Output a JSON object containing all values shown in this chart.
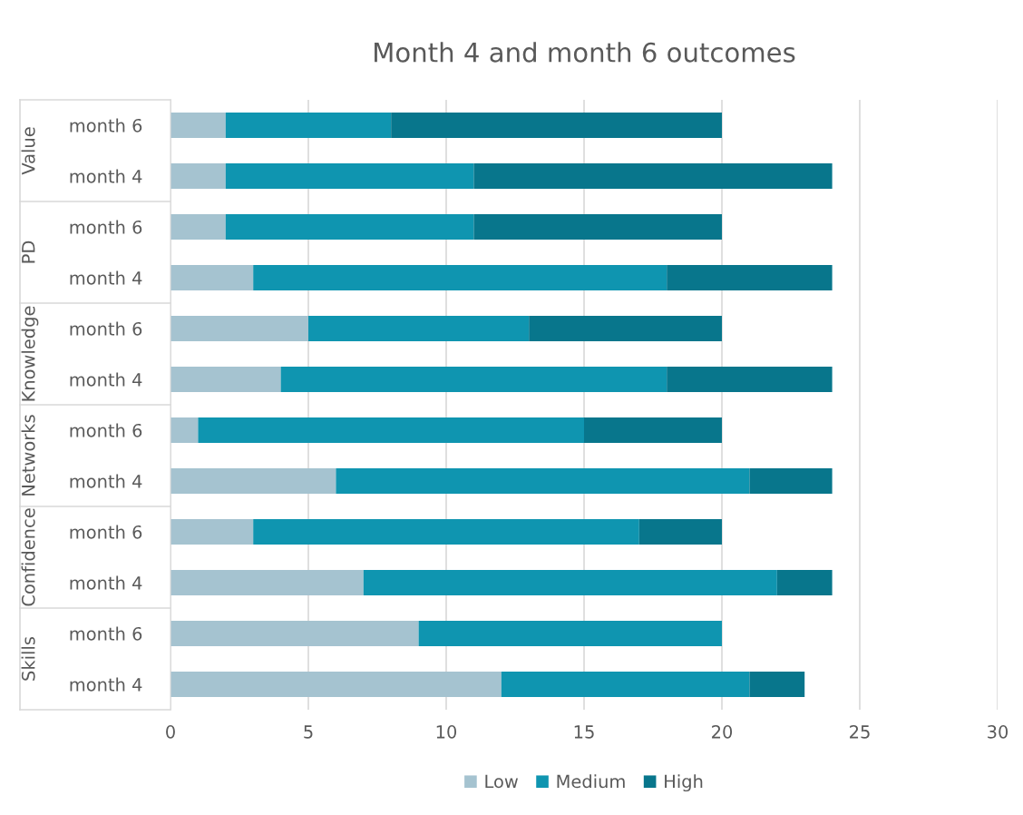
{
  "chart_data": {
    "type": "bar",
    "title": "Month 4 and month 6 outcomes",
    "orientation": "horizontal",
    "stacked": true,
    "categories": [
      "month 6",
      "month 4",
      "month 6",
      "month 4",
      "month 6",
      "month 4",
      "month 6",
      "month 4",
      "month 6",
      "month 4",
      "month 6",
      "month 4"
    ],
    "annotations": [
      "Value",
      "PD",
      "Knowledge",
      "Networks",
      "Confidence",
      "Skills"
    ],
    "series": [
      {
        "name": "Low",
        "color": "#a5c3d0",
        "values": [
          2,
          2,
          2,
          3,
          5,
          4,
          1,
          6,
          3,
          7,
          9,
          12
        ]
      },
      {
        "name": "Medium",
        "color": "#0f95b0",
        "values": [
          6,
          9,
          9,
          15,
          8,
          14,
          14,
          15,
          14,
          15,
          11,
          9
        ]
      },
      {
        "name": "High",
        "color": "#08768c",
        "values": [
          12,
          13,
          9,
          6,
          7,
          6,
          5,
          3,
          3,
          2,
          0,
          2
        ]
      }
    ],
    "xlim": [
      0,
      30
    ],
    "xticks": [
      0,
      5,
      10,
      15,
      20,
      25,
      30
    ],
    "grid": "x",
    "legend": "bottom"
  }
}
